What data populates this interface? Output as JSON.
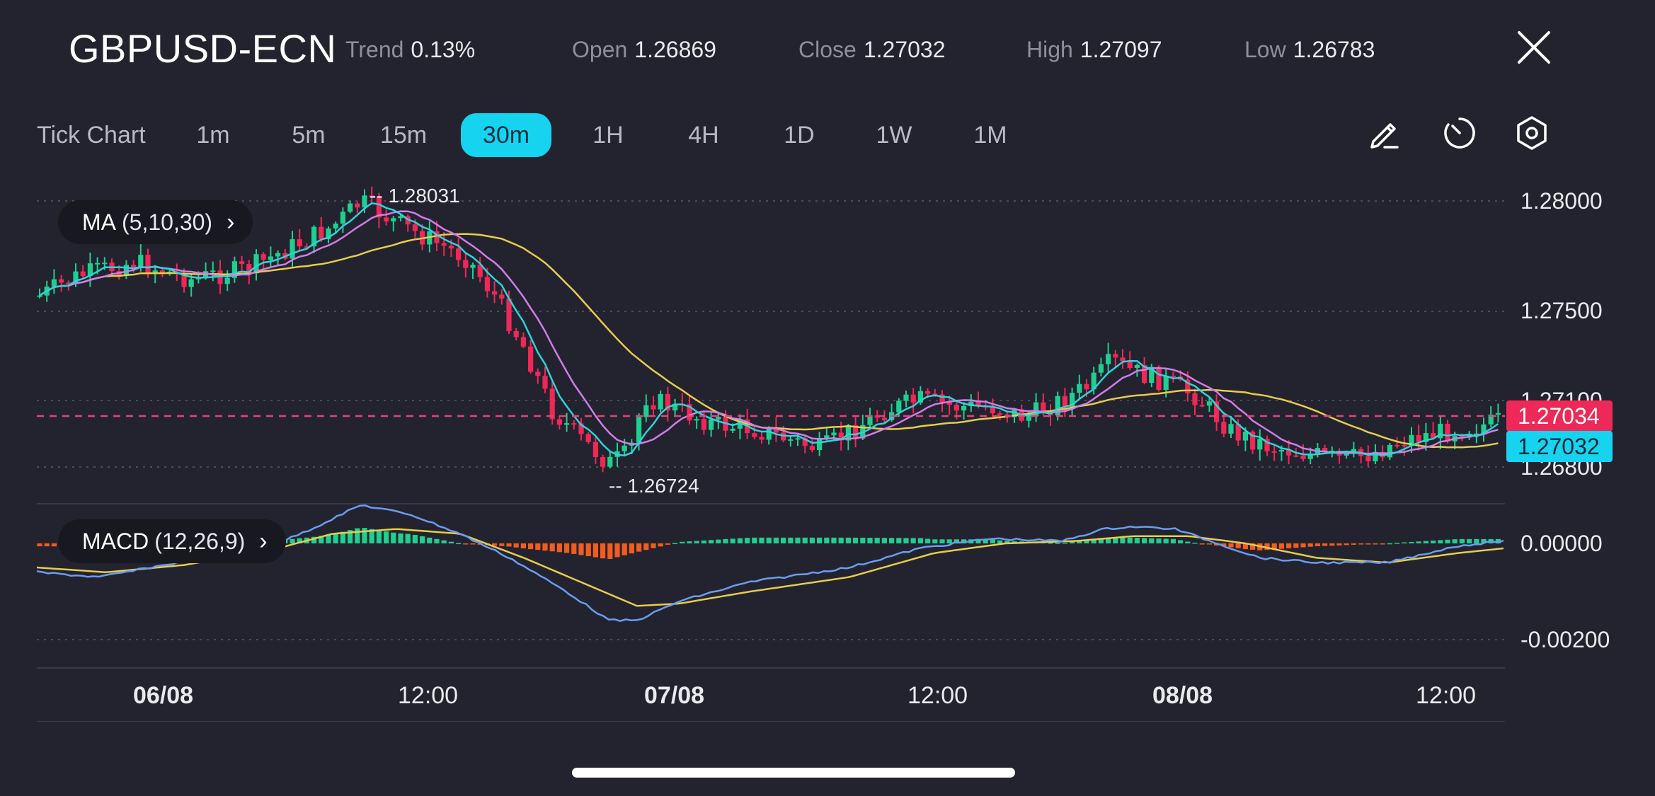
{
  "header": {
    "symbol": "GBPUSD-ECN",
    "stats": [
      {
        "label": "Trend",
        "value": "0.13%"
      },
      {
        "label": "Open",
        "value": "1.26869"
      },
      {
        "label": "Close",
        "value": "1.27032"
      },
      {
        "label": "High",
        "value": "1.27097"
      },
      {
        "label": "Low",
        "value": "1.26783"
      }
    ],
    "close_icon": "close-icon"
  },
  "timeframes": {
    "tick_label": "Tick Chart",
    "items": [
      "1m",
      "5m",
      "15m",
      "30m",
      "1H",
      "4H",
      "1D",
      "1W",
      "1M"
    ],
    "active": "30m",
    "active_color": "#16d4f0"
  },
  "tools": [
    "pencil-icon",
    "timer-icon",
    "settings-icon"
  ],
  "indicators": {
    "ma": {
      "name": "MA",
      "params": "(5,10,30)"
    },
    "macd": {
      "name": "MACD",
      "params": "(12,26,9)"
    }
  },
  "chart_data": {
    "type": "candlestick",
    "price_axis": [
      "1.28000",
      "1.27500",
      "1.27100",
      "1.26800"
    ],
    "macd_axis": [
      "0.00000",
      "-0.00200"
    ],
    "x_labels": [
      "06/08",
      "12:00",
      "07/08",
      "12:00",
      "08/08",
      "12:00"
    ],
    "high_marker": "-- 1.28031",
    "low_marker": "-- 1.26724",
    "current_price": "1.27034",
    "last_close": "1.27032",
    "ylim": [
      1.267,
      1.2815
    ],
    "colors": {
      "up": "#1fcf8f",
      "down": "#ee2857",
      "ma5": "#2fd3d9",
      "ma10": "#d07ee6",
      "ma30": "#e6cc4e",
      "macd_line": "#6a9cf0",
      "signal_line": "#e6cc4e",
      "hist_pos": "#1fcf8f",
      "hist_neg": "#f25c1f",
      "price_tag": "#ee2857",
      "close_tag": "#16d4f0"
    }
  }
}
